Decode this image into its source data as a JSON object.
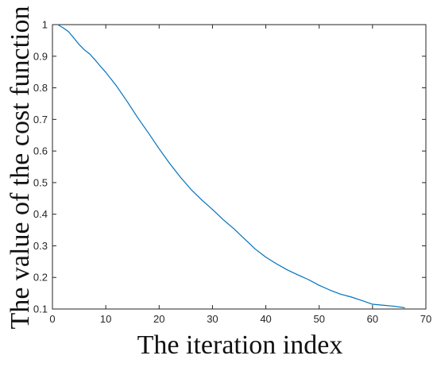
{
  "chart_data": {
    "type": "line",
    "title": "",
    "xlabel": "The iteration index",
    "ylabel": "The value of the cost function",
    "xlim": [
      0,
      70
    ],
    "ylim": [
      0.1,
      1
    ],
    "xticks": [
      0,
      10,
      20,
      30,
      40,
      50,
      60,
      70
    ],
    "xtick_labels": [
      "0",
      "10",
      "20",
      "30",
      "40",
      "50",
      "60",
      "70"
    ],
    "yticks": [
      0.1,
      0.2,
      0.3,
      0.4,
      0.5,
      0.6,
      0.7,
      0.8,
      0.9,
      1
    ],
    "ytick_labels": [
      "0.1",
      "0.2",
      "0.3",
      "0.4",
      "0.5",
      "0.6",
      "0.7",
      "0.8",
      "0.9",
      "1"
    ],
    "grid": false,
    "legend": "none",
    "series": [
      {
        "color": "#0072BD",
        "x": [
          1,
          2,
          3,
          4,
          5,
          6,
          7,
          8,
          9,
          10,
          12,
          14,
          16,
          18,
          20,
          22,
          24,
          26,
          28,
          30,
          32,
          34,
          36,
          38,
          40,
          42,
          44,
          46,
          48,
          50,
          52,
          54,
          56,
          58,
          60,
          62,
          64,
          66
        ],
        "y": [
          1.0,
          0.99,
          0.978,
          0.958,
          0.937,
          0.92,
          0.907,
          0.888,
          0.868,
          0.849,
          0.806,
          0.757,
          0.705,
          0.657,
          0.607,
          0.56,
          0.517,
          0.478,
          0.445,
          0.415,
          0.383,
          0.354,
          0.322,
          0.29,
          0.264,
          0.243,
          0.224,
          0.208,
          0.193,
          0.175,
          0.16,
          0.147,
          0.138,
          0.127,
          0.115,
          0.112,
          0.109,
          0.104
        ]
      }
    ]
  }
}
